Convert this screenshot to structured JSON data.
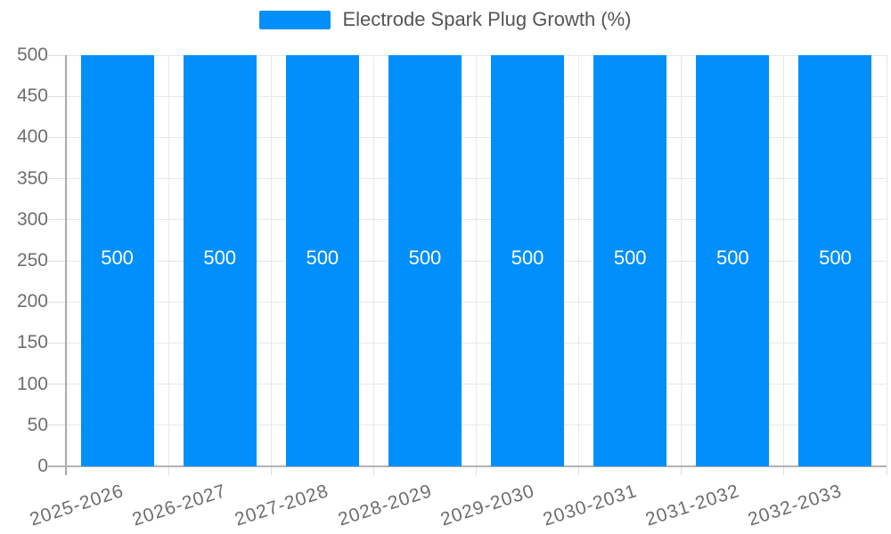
{
  "legend": {
    "label": "Electrode Spark Plug Growth (%)"
  },
  "colors": {
    "bar": "#008FFB",
    "axis_line": "#b2b2b2",
    "y_axis_line": "#a9a9a9",
    "gridline": "#e7e7e7",
    "tick": "#dedede",
    "axis_label_text": "#6e6e6e",
    "legend_text": "#555555",
    "value_label_text": "#ffffff",
    "background": "#ffffff"
  },
  "chart_data": {
    "type": "bar",
    "title": "Electrode Spark Plug Growth (%)",
    "categories": [
      "2025-2026",
      "2026-2027",
      "2027-2028",
      "2028-2029",
      "2029-2030",
      "2030-2031",
      "2031-2032",
      "2032-2033"
    ],
    "series": [
      {
        "name": "Electrode Spark Plug Growth (%)",
        "values": [
          500,
          500,
          500,
          500,
          500,
          500,
          500,
          500
        ]
      }
    ],
    "data_labels": [
      500,
      500,
      500,
      500,
      500,
      500,
      500,
      500
    ],
    "xlabel": "",
    "ylabel": "",
    "ylim": [
      0,
      500
    ],
    "yticks": [
      0,
      50,
      100,
      150,
      200,
      250,
      300,
      350,
      400,
      450,
      500
    ],
    "grid": true,
    "legend_position": "top",
    "x_label_rotation_deg": -18,
    "bar_color": "#008FFB"
  }
}
